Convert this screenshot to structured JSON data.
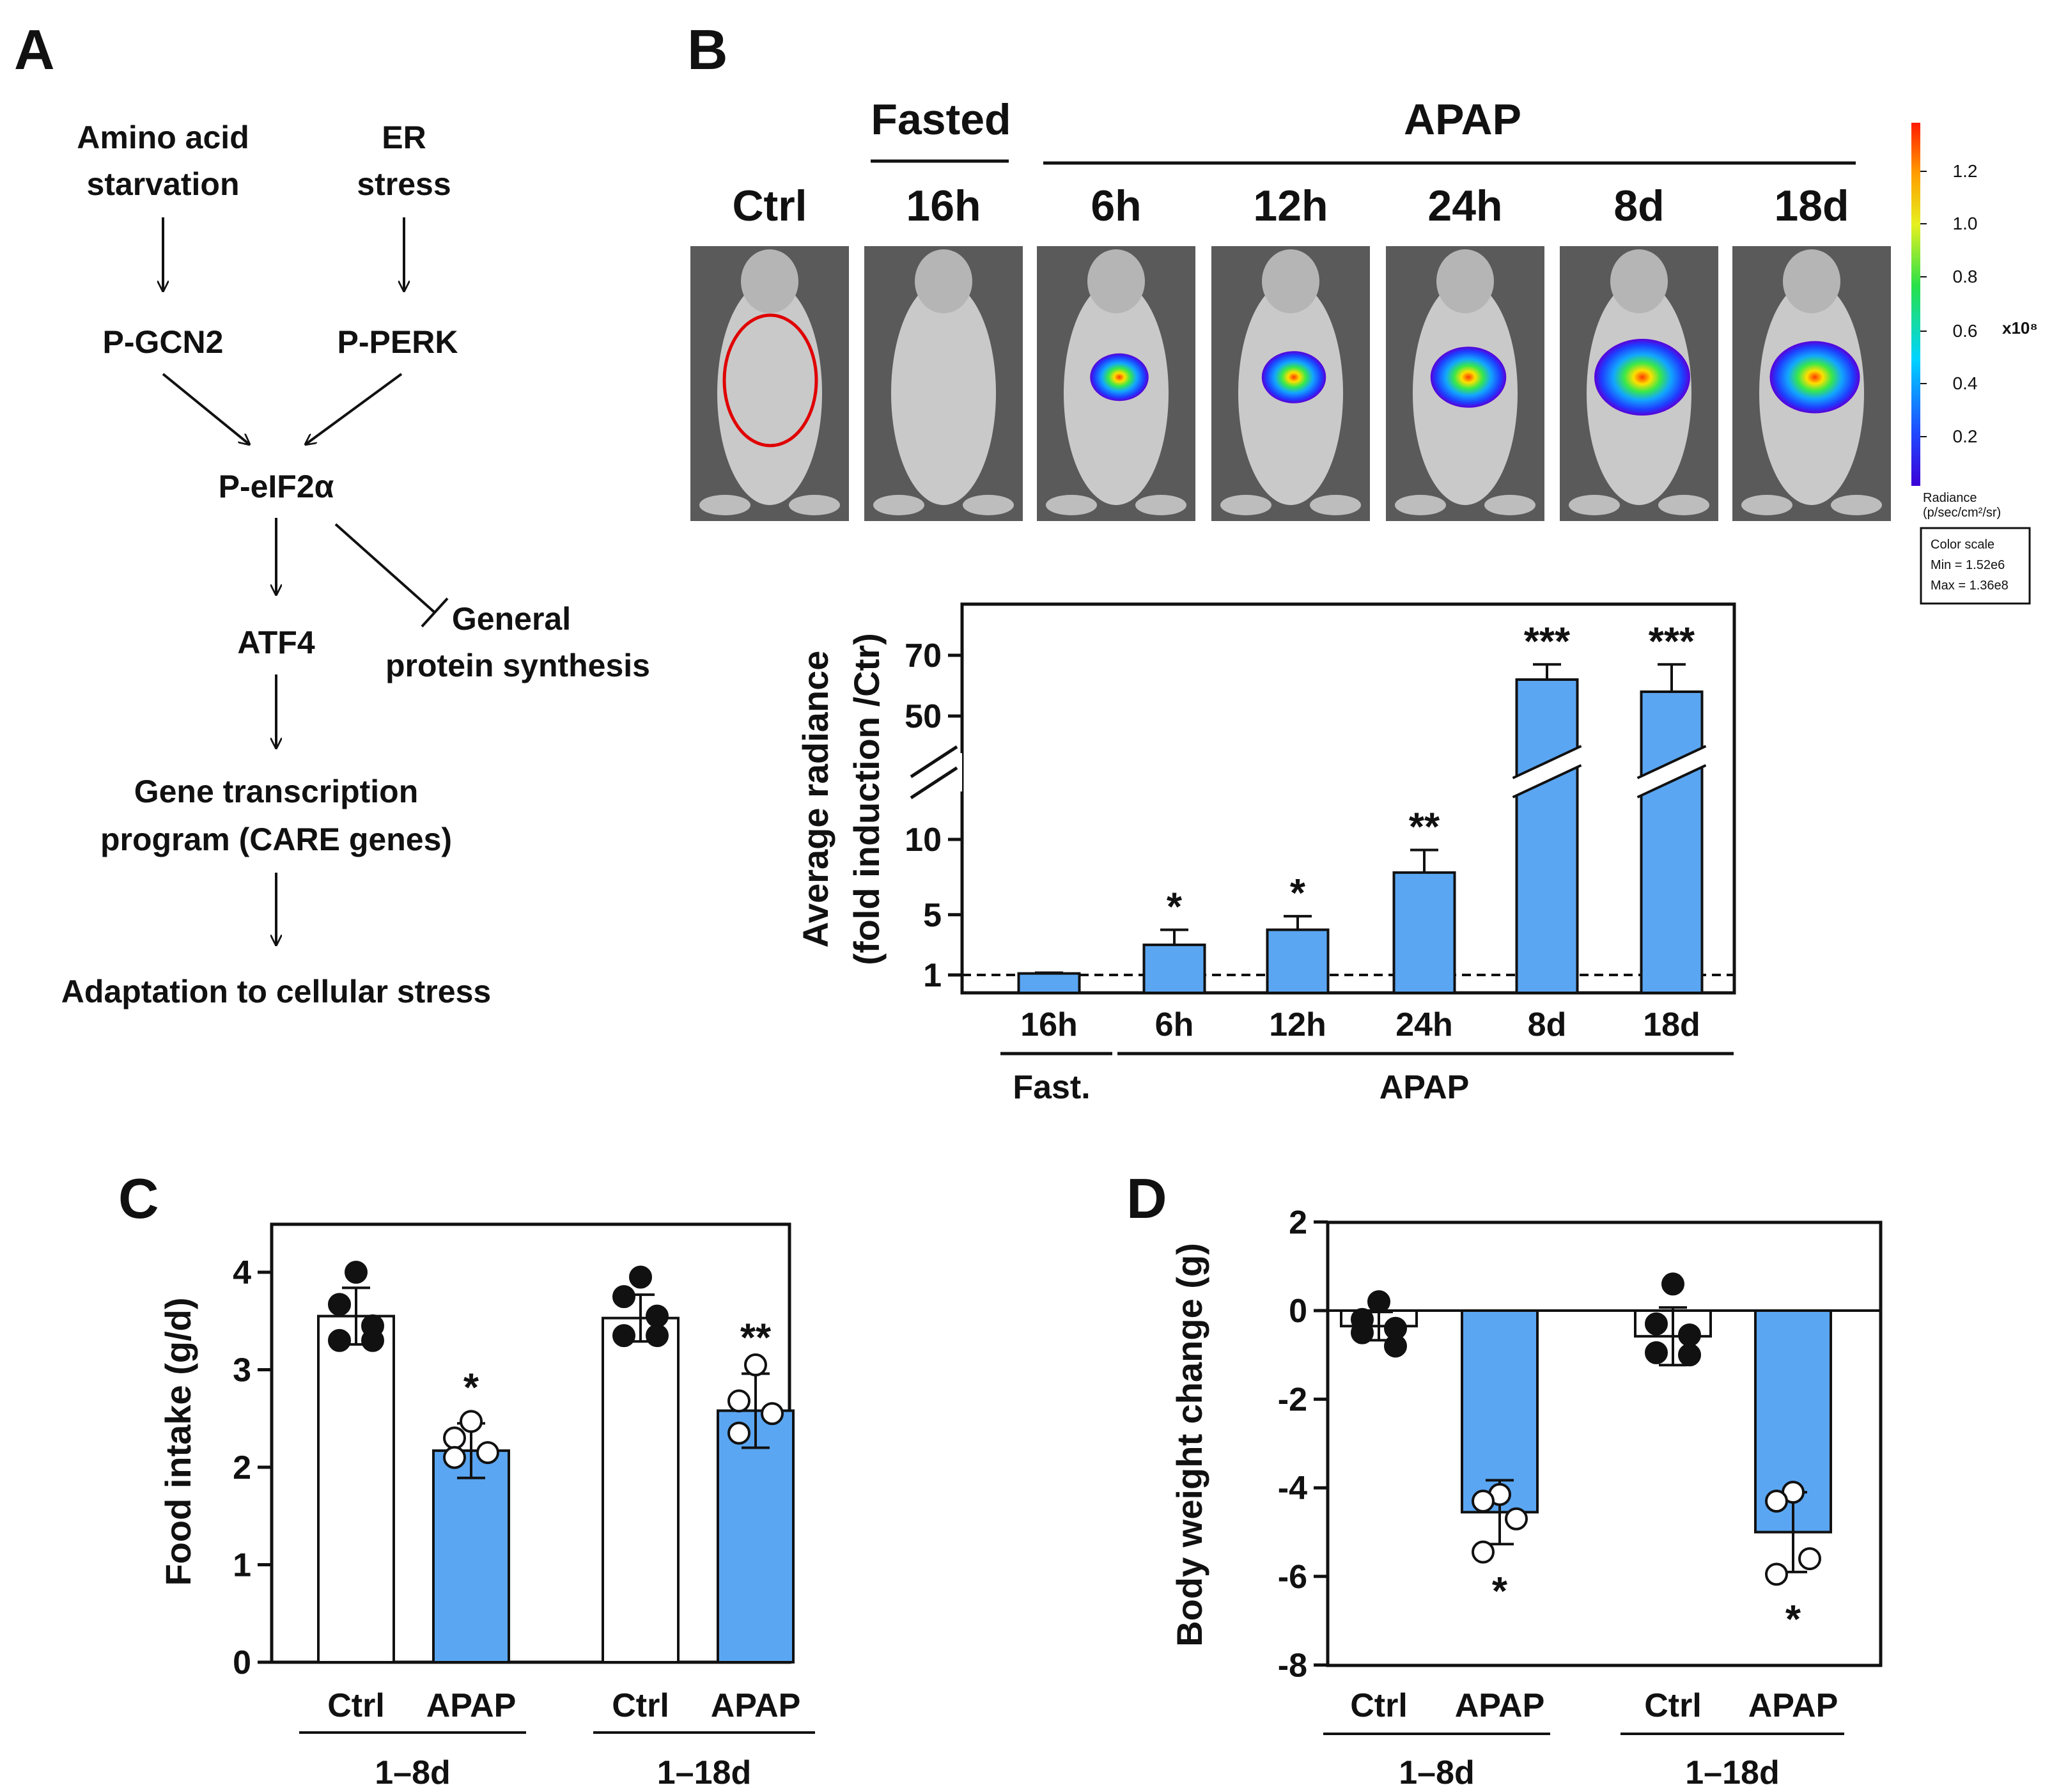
{
  "panels": {
    "a": {
      "letter": "A",
      "amino_line1": "Amino acid",
      "amino_line2": "starvation",
      "er_line1": "ER",
      "er_line2": "stress",
      "pgcn2": "P-GCN2",
      "pperk": "P-PERK",
      "peif2a": "P-eIF2α",
      "atf4": "ATF4",
      "general_line1": "General",
      "general_line2": "protein synthesis",
      "gene_line1": "Gene transcription",
      "gene_line2": "program (CARE genes)",
      "adaptation": "Adaptation to cellular stress"
    },
    "b": {
      "letter": "B",
      "header_fasted": "Fasted",
      "header_apap": "APAP",
      "mice": [
        {
          "label": "Ctrl",
          "signal": 0
        },
        {
          "label": "16h",
          "signal": 0
        },
        {
          "label": "6h",
          "signal": 0.35
        },
        {
          "label": "12h",
          "signal": 0.45
        },
        {
          "label": "24h",
          "signal": 0.65
        },
        {
          "label": "8d",
          "signal": 1.0
        },
        {
          "label": "18d",
          "signal": 0.9
        }
      ],
      "colorbar": {
        "ticks": [
          "1.2",
          "1.0",
          "0.8",
          "0.6",
          "0.4",
          "0.2"
        ],
        "multiplier": "x10⁸",
        "radiance_line1": "Radiance",
        "radiance_line2": "(p/sec/cm²/sr)",
        "scale_title": "Color scale",
        "scale_min": "Min = 1.52e6",
        "scale_max": "Max = 1.36e8"
      }
    },
    "c": {
      "letter": "C"
    },
    "d": {
      "letter": "D"
    }
  },
  "chart_data": [
    {
      "id": "B",
      "type": "bar",
      "ylabel_line1": "Average radiance",
      "ylabel_line2": "(fold induction /Ctr)",
      "categories": [
        "16h",
        "6h",
        "12h",
        "24h",
        "8d",
        "18d"
      ],
      "values": [
        1.1,
        3.0,
        4.0,
        7.8,
        62,
        58
      ],
      "errors": [
        0.05,
        1.0,
        0.9,
        1.5,
        5,
        9
      ],
      "significance": [
        "",
        "*",
        "*",
        "**",
        "***",
        "***"
      ],
      "yticks": [
        "1",
        "5",
        "10",
        "50",
        "70"
      ],
      "reference_line": 1,
      "axis_break": true,
      "groups": [
        {
          "label": "Fast."
        },
        {
          "label": "APAP"
        }
      ],
      "bar_color": "#5aa6f2"
    },
    {
      "id": "C",
      "type": "bar",
      "ylabel": "Food intake (g/d)",
      "ylim": [
        0,
        4.5
      ],
      "yticks": [
        "0",
        "1",
        "2",
        "3",
        "4"
      ],
      "categories": [
        "Ctrl",
        "APAP",
        "Ctrl",
        "APAP"
      ],
      "values": [
        3.55,
        2.17,
        3.53,
        2.58
      ],
      "errors": [
        0.29,
        0.28,
        0.24,
        0.38
      ],
      "significance": [
        "",
        "*",
        "",
        "**"
      ],
      "points": [
        [
          4.0,
          3.67,
          3.45,
          3.3,
          3.3
        ],
        [
          2.47,
          2.3,
          2.15,
          2.1
        ],
        [
          3.95,
          3.75,
          3.55,
          3.35,
          3.35
        ],
        [
          3.05,
          2.68,
          2.55,
          2.35
        ]
      ],
      "groups": [
        {
          "label": "1–8d"
        },
        {
          "label": "1–18d"
        }
      ],
      "bar_colors": [
        "#ffffff",
        "#5aa6f2",
        "#ffffff",
        "#5aa6f2"
      ]
    },
    {
      "id": "D",
      "type": "bar",
      "ylabel": "Body weight change (g)",
      "ylim": [
        -8,
        2
      ],
      "yticks": [
        "2",
        "0",
        "-2",
        "-4",
        "-6",
        "-8"
      ],
      "categories": [
        "Ctrl",
        "APAP",
        "Ctrl",
        "APAP"
      ],
      "values": [
        -0.35,
        -4.55,
        -0.58,
        -5.0
      ],
      "errors": [
        0.32,
        0.72,
        0.65,
        0.9
      ],
      "significance": [
        "",
        "*",
        "",
        "*"
      ],
      "points": [
        [
          0.2,
          -0.2,
          -0.4,
          -0.5,
          -0.8
        ],
        [
          -4.15,
          -4.3,
          -4.7,
          -5.45
        ],
        [
          0.6,
          -0.3,
          -0.55,
          -0.95,
          -1.0
        ],
        [
          -4.1,
          -4.3,
          -5.6,
          -5.95
        ]
      ],
      "groups": [
        {
          "label": "1–8d"
        },
        {
          "label": "1–18d"
        }
      ],
      "bar_colors": [
        "#ffffff",
        "#5aa6f2",
        "#ffffff",
        "#5aa6f2"
      ]
    }
  ]
}
